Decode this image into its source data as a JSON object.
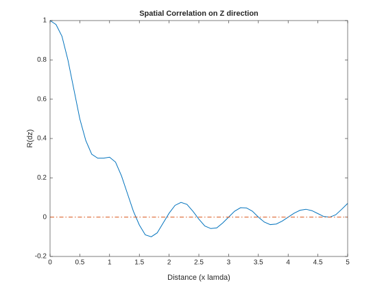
{
  "chart_data": {
    "type": "line",
    "title": "Spatial Correlation on Z direction",
    "xlabel": "Distance (x lamda)",
    "ylabel": "R(dz)",
    "xlim": [
      0,
      5
    ],
    "xticks": [
      0,
      0.5,
      1,
      1.5,
      2,
      2.5,
      3,
      3.5,
      4,
      4.5,
      5
    ],
    "ylim": [
      -0.2,
      1
    ],
    "yticks": [
      -0.2,
      0,
      0.2,
      0.4,
      0.6,
      0.8,
      1
    ],
    "grid": false,
    "series": [
      {
        "color": "#0072bd",
        "style": "solid",
        "x": [
          0,
          0.1,
          0.2,
          0.3,
          0.4,
          0.5,
          0.6,
          0.7,
          0.8,
          0.9,
          1,
          1.1,
          1.2,
          1.3,
          1.4,
          1.5,
          1.6,
          1.7,
          1.8,
          1.9,
          2,
          2.1,
          2.2,
          2.3,
          2.4,
          2.5,
          2.6,
          2.7,
          2.8,
          2.9,
          3,
          3.1,
          3.2,
          3.3,
          3.4,
          3.5,
          3.6,
          3.7,
          3.8,
          3.9,
          4,
          4.1,
          4.2,
          4.3,
          4.4,
          4.5,
          4.6,
          4.7,
          4.8,
          4.9,
          5
        ],
        "values": [
          1,
          0.98,
          0.92,
          0.8,
          0.65,
          0.5,
          0.39,
          0.32,
          0.3,
          0.3,
          0.305,
          0.28,
          0.21,
          0.12,
          0.03,
          -0.04,
          -0.09,
          -0.1,
          -0.08,
          -0.03,
          0.02,
          0.06,
          0.075,
          0.065,
          0.03,
          -0.01,
          -0.045,
          -0.058,
          -0.055,
          -0.03,
          0,
          0.03,
          0.048,
          0.047,
          0.03,
          0,
          -0.025,
          -0.038,
          -0.035,
          -0.02,
          0,
          0.02,
          0.035,
          0.04,
          0.033,
          0.018,
          0.003,
          0,
          0.012,
          0.04,
          0.07
        ]
      },
      {
        "color": "#d95319",
        "style": "dashdot",
        "x": [
          0,
          5
        ],
        "values": [
          0,
          0
        ]
      }
    ]
  }
}
